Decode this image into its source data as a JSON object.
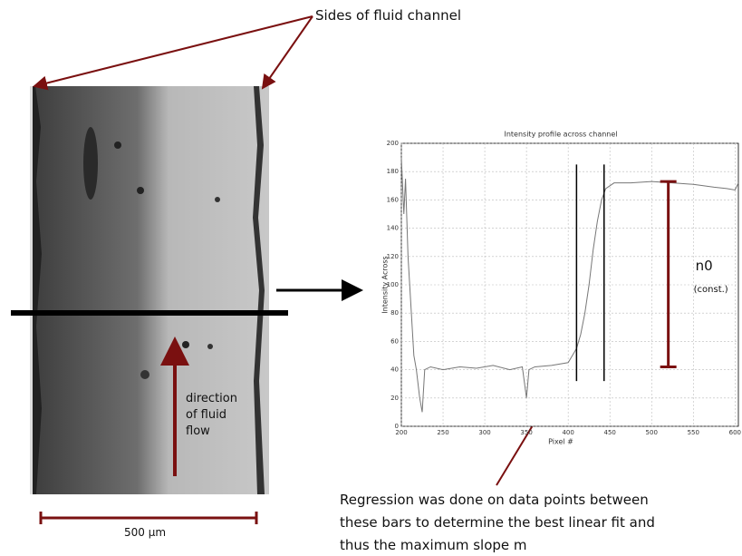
{
  "annotations": {
    "sides": "Sides of fluid channel",
    "flow": [
      "direction",
      "of fluid",
      "flow"
    ],
    "scale": "500 μm",
    "regression": [
      "Regression was done on data points between",
      "these bars to determine the best linear fit and",
      "thus the maximum slope m"
    ],
    "n0": "n0",
    "n0_note": "(const.)"
  },
  "chart_data": {
    "type": "line",
    "title": "Intensity profile across channel",
    "x_label": "Pixel #",
    "y_label": "Intensity Across",
    "x": [
      200,
      203,
      205,
      208,
      212,
      215,
      218,
      222,
      225,
      228,
      235,
      250,
      270,
      290,
      310,
      330,
      345,
      350,
      353,
      360,
      380,
      400,
      410,
      415,
      420,
      425,
      430,
      435,
      440,
      445,
      455,
      475,
      500,
      525,
      550,
      575,
      590,
      600,
      604
    ],
    "series": [
      {
        "color": "#777777",
        "values": [
          190,
          150,
          175,
          120,
          80,
          50,
          40,
          20,
          10,
          40,
          42,
          40,
          42,
          41,
          43,
          40,
          42,
          20,
          40,
          42,
          43,
          45,
          55,
          65,
          80,
          100,
          125,
          145,
          160,
          168,
          172,
          172,
          173,
          172,
          171,
          169,
          168,
          167,
          172
        ]
      }
    ],
    "xlim": [
      200,
      604
    ],
    "ylim": [
      0,
      200
    ],
    "xticks": [
      200,
      250,
      300,
      350,
      400,
      450,
      500,
      550,
      600
    ],
    "yticks": [
      0,
      20,
      40,
      60,
      80,
      100,
      120,
      140,
      160,
      180,
      200
    ],
    "grid": true,
    "fit_bounds": [
      410,
      443
    ],
    "n0_range": [
      42,
      173
    ],
    "n0_x": 520
  }
}
